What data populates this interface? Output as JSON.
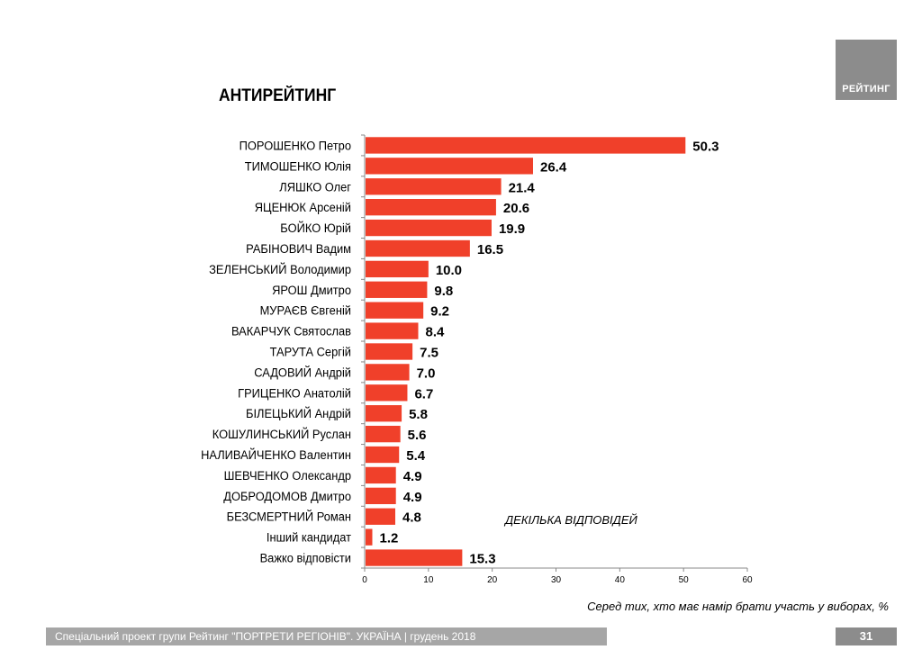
{
  "logo_text": "РЕЙТИНГ",
  "note": "ДЕКІЛЬКА ВІДПОВІДЕЙ",
  "subnote": "Серед тих, хто має намір брати участь у виборах, %",
  "footer_text": "Спеціальний проект групи Рейтинг \"ПОРТРЕТИ РЕГІОНІВ\". УКРАЇНА | грудень 2018",
  "page_number": "31",
  "chart_data": {
    "type": "bar",
    "orientation": "horizontal",
    "title": "АНТИРЕЙТИНГ",
    "categories": [
      "ПОРОШЕНКО Петро",
      "ТИМОШЕНКО Юлія",
      "ЛЯШКО Олег",
      "ЯЦЕНЮК Арсеній",
      "БОЙКО Юрій",
      "РАБІНОВИЧ Вадим",
      "ЗЕЛЕНСЬКИЙ Володимир",
      "ЯРОШ Дмитро",
      "МУРАЄВ Євгеній",
      "ВАКАРЧУК Святослав",
      "ТАРУТА Сергій",
      "САДОВИЙ Андрій",
      "ГРИЦЕНКО Анатолій",
      "БІЛЕЦЬКИЙ Андрій",
      "КОШУЛИНСЬКИЙ Руслан",
      "НАЛИВАЙЧЕНКО Валентин",
      "ШЕВЧЕНКО Олександр",
      "ДОБРОДОМОВ Дмитро",
      "БЕЗСМЕРТНИЙ Роман",
      "Інший кандидат",
      "Важко відповісти"
    ],
    "values": [
      50.3,
      26.4,
      21.4,
      20.6,
      19.9,
      16.5,
      10.0,
      9.8,
      9.2,
      8.4,
      7.5,
      7.0,
      6.7,
      5.8,
      5.6,
      5.4,
      4.9,
      4.9,
      4.8,
      1.2,
      15.3
    ],
    "value_labels": [
      "50.3",
      "26.4",
      "21.4",
      "20.6",
      "19.9",
      "16.5",
      "10.0",
      "9.8",
      "9.2",
      "8.4",
      "7.5",
      "7.0",
      "6.7",
      "5.8",
      "5.6",
      "5.4",
      "4.9",
      "4.9",
      "4.8",
      "1.2",
      "15.3"
    ],
    "xlim": [
      0,
      60
    ],
    "xticks": [
      0,
      10,
      20,
      30,
      40,
      50,
      60
    ],
    "xlabel": "",
    "ylabel": "",
    "bar_color": "#f0402a",
    "grid": false,
    "legend": "none"
  }
}
